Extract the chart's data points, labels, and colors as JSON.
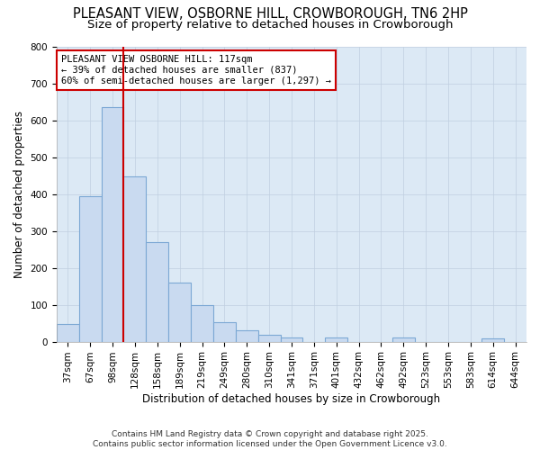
{
  "title_line1": "PLEASANT VIEW, OSBORNE HILL, CROWBOROUGH, TN6 2HP",
  "title_line2": "Size of property relative to detached houses in Crowborough",
  "xlabel": "Distribution of detached houses by size in Crowborough",
  "ylabel": "Number of detached properties",
  "categories": [
    "37sqm",
    "67sqm",
    "98sqm",
    "128sqm",
    "158sqm",
    "189sqm",
    "219sqm",
    "249sqm",
    "280sqm",
    "310sqm",
    "341sqm",
    "371sqm",
    "401sqm",
    "432sqm",
    "462sqm",
    "492sqm",
    "523sqm",
    "553sqm",
    "583sqm",
    "614sqm",
    "644sqm"
  ],
  "values": [
    48,
    393,
    635,
    447,
    270,
    160,
    98,
    52,
    30,
    18,
    12,
    0,
    12,
    0,
    0,
    12,
    0,
    0,
    0,
    8,
    0
  ],
  "bar_color": "#c9daf0",
  "bar_edge_color": "#7ca8d4",
  "vline_color": "#cc0000",
  "vline_x_index": 2.5,
  "annotation_text": "PLEASANT VIEW OSBORNE HILL: 117sqm\n← 39% of detached houses are smaller (837)\n60% of semi-detached houses are larger (1,297) →",
  "annotation_box_edge_color": "#cc0000",
  "annotation_box_face_color": "#ffffff",
  "ylim": [
    0,
    800
  ],
  "yticks": [
    0,
    100,
    200,
    300,
    400,
    500,
    600,
    700,
    800
  ],
  "grid_color": "#c0cfe0",
  "bg_color": "#dce9f5",
  "fig_bg_color": "#ffffff",
  "footnote": "Contains HM Land Registry data © Crown copyright and database right 2025.\nContains public sector information licensed under the Open Government Licence v3.0.",
  "title_fontsize": 10.5,
  "subtitle_fontsize": 9.5,
  "axis_label_fontsize": 8.5,
  "tick_fontsize": 7.5,
  "annotation_fontsize": 7.5,
  "footnote_fontsize": 6.5
}
